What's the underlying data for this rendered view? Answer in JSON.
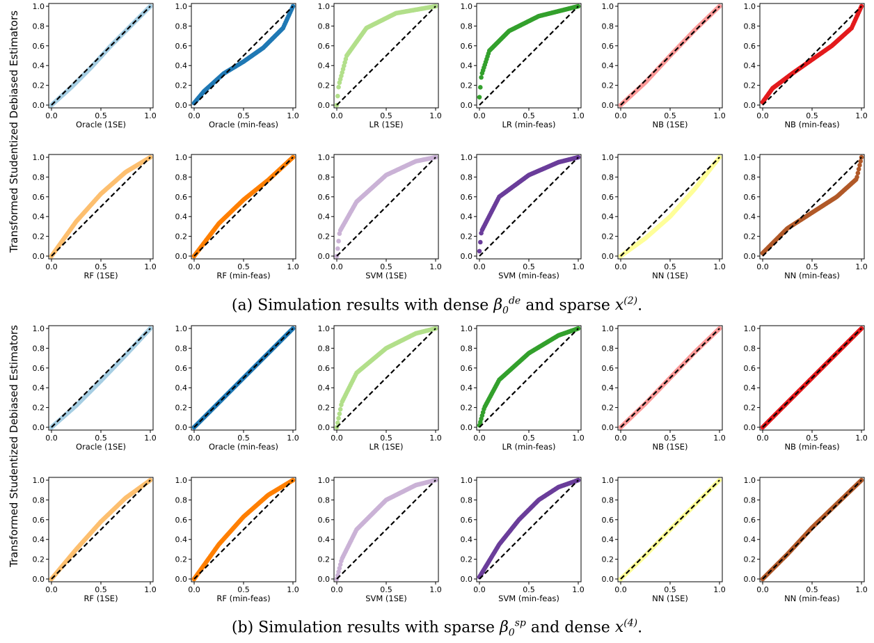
{
  "figure": {
    "y_axis_label": "Transformed Studentized Debiased Estimators",
    "tick_values": [
      "0.0",
      "0.2",
      "0.4",
      "0.6",
      "0.8",
      "1.0"
    ],
    "x_tick_values": [
      "0.0",
      "0.5",
      "1.0"
    ],
    "reference_line": {
      "style": "dashed",
      "color": "#000000"
    }
  },
  "captions": {
    "a": {
      "prefix": "(a) Simulation results with dense ",
      "beta_sup": "de",
      "middle": " and sparse ",
      "x_sup": "(2)",
      "suffix": "."
    },
    "b": {
      "prefix": "(b) Simulation results with sparse ",
      "beta_sup": "sp",
      "middle": " and dense ",
      "x_sup": "(4)",
      "suffix": "."
    }
  },
  "chart_data": [
    {
      "type": "scatter",
      "panel": "a",
      "row": 1,
      "xlabel": "Oracle (1SE)",
      "color": "#a6cee3",
      "curve": "diag",
      "xlim": [
        0,
        1
      ],
      "ylim": [
        0,
        1
      ],
      "points": [
        [
          0.0,
          0.0
        ],
        [
          0.2,
          0.18
        ],
        [
          0.4,
          0.38
        ],
        [
          0.6,
          0.6
        ],
        [
          0.8,
          0.8
        ],
        [
          1.0,
          1.0
        ]
      ]
    },
    {
      "type": "scatter",
      "panel": "a",
      "row": 1,
      "xlabel": "Oracle (min-feas)",
      "color": "#1f78b4",
      "curve": "s_under",
      "xlim": [
        0,
        1
      ],
      "ylim": [
        0,
        1
      ],
      "points": [
        [
          0.0,
          0.02
        ],
        [
          0.1,
          0.14
        ],
        [
          0.3,
          0.32
        ],
        [
          0.5,
          0.44
        ],
        [
          0.7,
          0.58
        ],
        [
          0.9,
          0.78
        ],
        [
          1.0,
          1.0
        ]
      ]
    },
    {
      "type": "scatter",
      "panel": "a",
      "row": 1,
      "xlabel": "LR (1SE)",
      "color": "#b2df8a",
      "curve": "concave_strong",
      "xlim": [
        0,
        1
      ],
      "ylim": [
        0,
        1
      ],
      "points": [
        [
          0.0,
          0.0
        ],
        [
          0.02,
          0.2
        ],
        [
          0.1,
          0.5
        ],
        [
          0.3,
          0.78
        ],
        [
          0.6,
          0.93
        ],
        [
          1.0,
          1.0
        ]
      ]
    },
    {
      "type": "scatter",
      "panel": "a",
      "row": 1,
      "xlabel": "LR (min-feas)",
      "color": "#33a02c",
      "curve": "concave_strong",
      "xlim": [
        0,
        1
      ],
      "ylim": [
        0,
        1
      ],
      "points": [
        [
          0.0,
          0.08
        ],
        [
          0.02,
          0.3
        ],
        [
          0.1,
          0.55
        ],
        [
          0.3,
          0.75
        ],
        [
          0.6,
          0.9
        ],
        [
          1.0,
          1.0
        ]
      ]
    },
    {
      "type": "scatter",
      "panel": "a",
      "row": 1,
      "xlabel": "NB (1SE)",
      "color": "#fb9a99",
      "curve": "diag",
      "xlim": [
        0,
        1
      ],
      "ylim": [
        0,
        1
      ],
      "points": [
        [
          0.0,
          0.0
        ],
        [
          0.25,
          0.23
        ],
        [
          0.5,
          0.5
        ],
        [
          0.75,
          0.76
        ],
        [
          1.0,
          1.0
        ]
      ]
    },
    {
      "type": "scatter",
      "panel": "a",
      "row": 1,
      "xlabel": "NB (min-feas)",
      "color": "#e31a1c",
      "curve": "s_under",
      "xlim": [
        0,
        1
      ],
      "ylim": [
        0,
        1
      ],
      "points": [
        [
          0.0,
          0.03
        ],
        [
          0.1,
          0.17
        ],
        [
          0.3,
          0.32
        ],
        [
          0.5,
          0.46
        ],
        [
          0.7,
          0.6
        ],
        [
          0.9,
          0.78
        ],
        [
          1.0,
          1.0
        ]
      ]
    },
    {
      "type": "scatter",
      "panel": "a",
      "row": 2,
      "xlabel": "RF (1SE)",
      "color": "#fdbf6f",
      "curve": "concave_mild",
      "xlim": [
        0,
        1
      ],
      "ylim": [
        0,
        1
      ],
      "points": [
        [
          0.0,
          0.0
        ],
        [
          0.25,
          0.35
        ],
        [
          0.5,
          0.63
        ],
        [
          0.75,
          0.85
        ],
        [
          1.0,
          1.0
        ]
      ]
    },
    {
      "type": "scatter",
      "panel": "a",
      "row": 2,
      "xlabel": "RF (min-feas)",
      "color": "#ff7f00",
      "curve": "concave_light",
      "xlim": [
        0,
        1
      ],
      "ylim": [
        0,
        1
      ],
      "points": [
        [
          0.0,
          0.0
        ],
        [
          0.25,
          0.33
        ],
        [
          0.5,
          0.57
        ],
        [
          0.75,
          0.77
        ],
        [
          1.0,
          1.0
        ]
      ]
    },
    {
      "type": "scatter",
      "panel": "a",
      "row": 2,
      "xlabel": "SVM (1SE)",
      "color": "#cab2d6",
      "curve": "concave_strong",
      "xlim": [
        0,
        1
      ],
      "ylim": [
        0,
        1
      ],
      "points": [
        [
          0.0,
          0.0
        ],
        [
          0.03,
          0.25
        ],
        [
          0.2,
          0.55
        ],
        [
          0.5,
          0.82
        ],
        [
          0.8,
          0.96
        ],
        [
          1.0,
          1.0
        ]
      ]
    },
    {
      "type": "scatter",
      "panel": "a",
      "row": 2,
      "xlabel": "SVM (min-feas)",
      "color": "#6a3d9a",
      "curve": "concave_strong",
      "xlim": [
        0,
        1
      ],
      "ylim": [
        0,
        1
      ],
      "points": [
        [
          0.0,
          0.05
        ],
        [
          0.02,
          0.25
        ],
        [
          0.2,
          0.6
        ],
        [
          0.5,
          0.82
        ],
        [
          0.8,
          0.95
        ],
        [
          1.0,
          1.0
        ]
      ]
    },
    {
      "type": "scatter",
      "panel": "a",
      "row": 2,
      "xlabel": "NN (1SE)",
      "color": "#ffff99",
      "curve": "convex_light",
      "xlim": [
        0,
        1
      ],
      "ylim": [
        0,
        1
      ],
      "points": [
        [
          0.0,
          0.0
        ],
        [
          0.25,
          0.18
        ],
        [
          0.5,
          0.4
        ],
        [
          0.75,
          0.68
        ],
        [
          1.0,
          1.0
        ]
      ]
    },
    {
      "type": "scatter",
      "panel": "a",
      "row": 2,
      "xlabel": "NN (min-feas)",
      "color": "#b15928",
      "curve": "s_under",
      "xlim": [
        0,
        1
      ],
      "ylim": [
        0,
        1
      ],
      "points": [
        [
          0.0,
          0.03
        ],
        [
          0.25,
          0.28
        ],
        [
          0.5,
          0.44
        ],
        [
          0.75,
          0.6
        ],
        [
          0.95,
          0.78
        ],
        [
          1.0,
          1.0
        ]
      ]
    },
    {
      "type": "scatter",
      "panel": "b",
      "row": 1,
      "xlabel": "Oracle (1SE)",
      "color": "#a6cee3",
      "curve": "diag",
      "xlim": [
        0,
        1
      ],
      "ylim": [
        0,
        1
      ],
      "points": [
        [
          0.0,
          0.0
        ],
        [
          0.25,
          0.22
        ],
        [
          0.5,
          0.47
        ],
        [
          0.75,
          0.73
        ],
        [
          1.0,
          1.0
        ]
      ]
    },
    {
      "type": "scatter",
      "panel": "b",
      "row": 1,
      "xlabel": "Oracle (min-feas)",
      "color": "#1f78b4",
      "curve": "diag",
      "xlim": [
        0,
        1
      ],
      "ylim": [
        0,
        1
      ],
      "points": [
        [
          0.0,
          0.0
        ],
        [
          0.25,
          0.25
        ],
        [
          0.5,
          0.5
        ],
        [
          0.75,
          0.75
        ],
        [
          1.0,
          1.0
        ]
      ]
    },
    {
      "type": "scatter",
      "panel": "b",
      "row": 1,
      "xlabel": "LR (1SE)",
      "color": "#b2df8a",
      "curve": "concave_strong",
      "xlim": [
        0,
        1
      ],
      "ylim": [
        0,
        1
      ],
      "points": [
        [
          0.0,
          0.0
        ],
        [
          0.05,
          0.25
        ],
        [
          0.2,
          0.55
        ],
        [
          0.5,
          0.8
        ],
        [
          0.8,
          0.95
        ],
        [
          1.0,
          1.0
        ]
      ]
    },
    {
      "type": "scatter",
      "panel": "b",
      "row": 1,
      "xlabel": "LR (min-feas)",
      "color": "#33a02c",
      "curve": "concave_strong",
      "xlim": [
        0,
        1
      ],
      "ylim": [
        0,
        1
      ],
      "points": [
        [
          0.0,
          0.02
        ],
        [
          0.05,
          0.2
        ],
        [
          0.2,
          0.48
        ],
        [
          0.5,
          0.75
        ],
        [
          0.8,
          0.93
        ],
        [
          1.0,
          1.0
        ]
      ]
    },
    {
      "type": "scatter",
      "panel": "b",
      "row": 1,
      "xlabel": "NB (1SE)",
      "color": "#fb9a99",
      "curve": "diag",
      "xlim": [
        0,
        1
      ],
      "ylim": [
        0,
        1
      ],
      "points": [
        [
          0.0,
          0.0
        ],
        [
          0.25,
          0.24
        ],
        [
          0.5,
          0.5
        ],
        [
          0.75,
          0.76
        ],
        [
          1.0,
          1.0
        ]
      ]
    },
    {
      "type": "scatter",
      "panel": "b",
      "row": 1,
      "xlabel": "NB (min-feas)",
      "color": "#e31a1c",
      "curve": "diag",
      "xlim": [
        0,
        1
      ],
      "ylim": [
        0,
        1
      ],
      "points": [
        [
          0.0,
          0.0
        ],
        [
          0.25,
          0.25
        ],
        [
          0.5,
          0.5
        ],
        [
          0.75,
          0.75
        ],
        [
          1.0,
          1.0
        ]
      ]
    },
    {
      "type": "scatter",
      "panel": "b",
      "row": 2,
      "xlabel": "RF (1SE)",
      "color": "#fdbf6f",
      "curve": "concave_light",
      "xlim": [
        0,
        1
      ],
      "ylim": [
        0,
        1
      ],
      "points": [
        [
          0.0,
          0.0
        ],
        [
          0.25,
          0.3
        ],
        [
          0.5,
          0.58
        ],
        [
          0.75,
          0.82
        ],
        [
          1.0,
          1.0
        ]
      ]
    },
    {
      "type": "scatter",
      "panel": "b",
      "row": 2,
      "xlabel": "RF (min-feas)",
      "color": "#ff7f00",
      "curve": "concave_mild",
      "xlim": [
        0,
        1
      ],
      "ylim": [
        0,
        1
      ],
      "points": [
        [
          0.0,
          0.0
        ],
        [
          0.25,
          0.35
        ],
        [
          0.5,
          0.63
        ],
        [
          0.75,
          0.85
        ],
        [
          1.0,
          1.0
        ]
      ]
    },
    {
      "type": "scatter",
      "panel": "b",
      "row": 2,
      "xlabel": "SVM (1SE)",
      "color": "#cab2d6",
      "curve": "concave_strong",
      "xlim": [
        0,
        1
      ],
      "ylim": [
        0,
        1
      ],
      "points": [
        [
          0.0,
          0.0
        ],
        [
          0.05,
          0.2
        ],
        [
          0.2,
          0.5
        ],
        [
          0.5,
          0.8
        ],
        [
          0.8,
          0.95
        ],
        [
          1.0,
          1.0
        ]
      ]
    },
    {
      "type": "scatter",
      "panel": "b",
      "row": 2,
      "xlabel": "SVM (min-feas)",
      "color": "#6a3d9a",
      "curve": "concave_medium",
      "xlim": [
        0,
        1
      ],
      "ylim": [
        0,
        1
      ],
      "points": [
        [
          0.0,
          0.02
        ],
        [
          0.2,
          0.35
        ],
        [
          0.4,
          0.6
        ],
        [
          0.6,
          0.8
        ],
        [
          0.8,
          0.93
        ],
        [
          1.0,
          1.0
        ]
      ]
    },
    {
      "type": "scatter",
      "panel": "b",
      "row": 2,
      "xlabel": "NN (1SE)",
      "color": "#ffff99",
      "curve": "diag",
      "xlim": [
        0,
        1
      ],
      "ylim": [
        0,
        1
      ],
      "points": [
        [
          0.0,
          0.0
        ],
        [
          0.25,
          0.24
        ],
        [
          0.5,
          0.5
        ],
        [
          0.75,
          0.75
        ],
        [
          1.0,
          1.0
        ]
      ]
    },
    {
      "type": "scatter",
      "panel": "b",
      "row": 2,
      "xlabel": "NN (min-feas)",
      "color": "#b15928",
      "curve": "diag",
      "xlim": [
        0,
        1
      ],
      "ylim": [
        0,
        1
      ],
      "points": [
        [
          0.0,
          0.0
        ],
        [
          0.25,
          0.25
        ],
        [
          0.5,
          0.52
        ],
        [
          0.75,
          0.76
        ],
        [
          1.0,
          1.0
        ]
      ]
    }
  ]
}
